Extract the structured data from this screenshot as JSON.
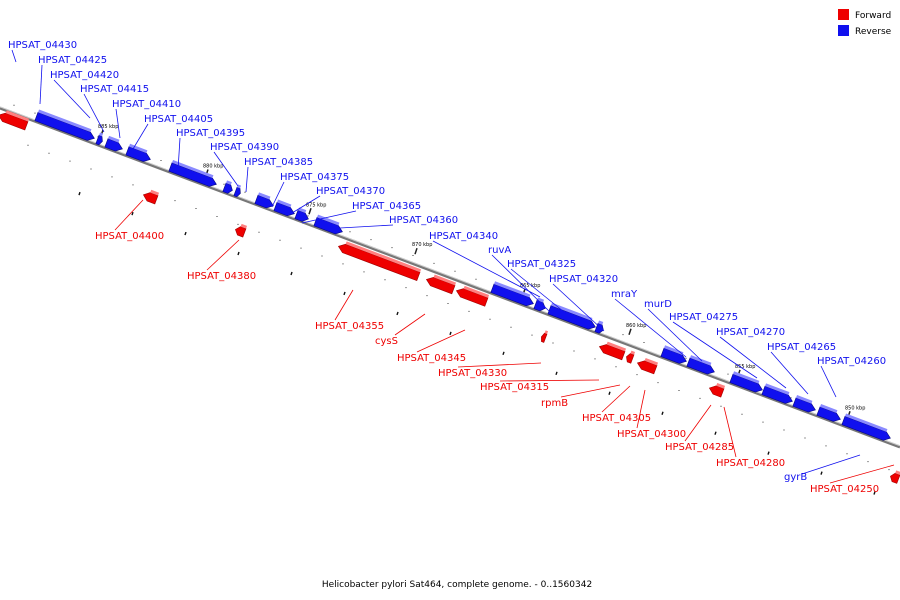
{
  "colors": {
    "forward": "#ee0000",
    "reverse": "#1010ee",
    "backbone": "#888888",
    "tick": "#222222"
  },
  "legend": [
    {
      "label": "Forward",
      "color": "#ee0000"
    },
    {
      "label": "Reverse",
      "color": "#1010ee"
    }
  ],
  "caption": "Helicobacter pylori Sat464, complete genome. - 0..1560342",
  "ruler_labels": [
    "885 kbp",
    "880 kbp",
    "875 kbp",
    "870 kbp",
    "865 kbp",
    "860 kbp",
    "855 kbp",
    "850 kbp"
  ],
  "reverse_genes": [
    {
      "name": "HPSAT_04430"
    },
    {
      "name": "HPSAT_04425"
    },
    {
      "name": "HPSAT_04420"
    },
    {
      "name": "HPSAT_04415"
    },
    {
      "name": "HPSAT_04410"
    },
    {
      "name": "HPSAT_04405"
    },
    {
      "name": "HPSAT_04395"
    },
    {
      "name": "HPSAT_04390"
    },
    {
      "name": "HPSAT_04385"
    },
    {
      "name": "HPSAT_04375"
    },
    {
      "name": "HPSAT_04370"
    },
    {
      "name": "HPSAT_04365"
    },
    {
      "name": "HPSAT_04360"
    },
    {
      "name": "HPSAT_04340"
    },
    {
      "name": "ruvA"
    },
    {
      "name": "HPSAT_04325"
    },
    {
      "name": "HPSAT_04320"
    },
    {
      "name": "mraY"
    },
    {
      "name": "murD"
    },
    {
      "name": "HPSAT_04275"
    },
    {
      "name": "HPSAT_04270"
    },
    {
      "name": "HPSAT_04265"
    },
    {
      "name": "HPSAT_04260"
    },
    {
      "name": "gyrB"
    }
  ],
  "forward_genes": [
    {
      "name": "HPSAT_04400"
    },
    {
      "name": "HPSAT_04380"
    },
    {
      "name": "HPSAT_04355"
    },
    {
      "name": "cysS"
    },
    {
      "name": "HPSAT_04345"
    },
    {
      "name": "HPSAT_04330"
    },
    {
      "name": "HPSAT_04315"
    },
    {
      "name": "rpmB"
    },
    {
      "name": "HPSAT_04305"
    },
    {
      "name": "HPSAT_04300"
    },
    {
      "name": "HPSAT_04285"
    },
    {
      "name": "HPSAT_04280"
    },
    {
      "name": "HPSAT_04250"
    }
  ]
}
